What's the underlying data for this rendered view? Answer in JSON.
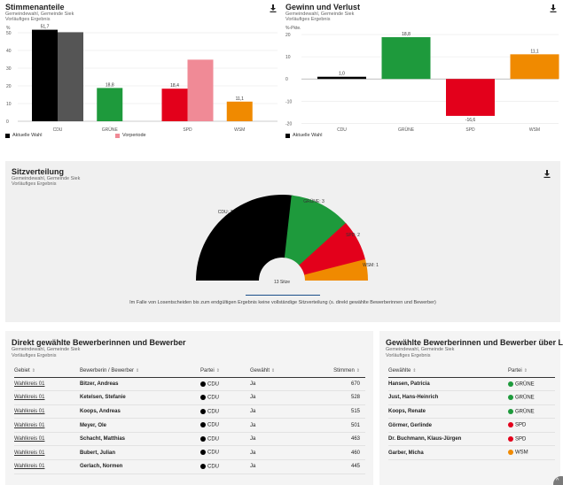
{
  "colors": {
    "CDU": "#000000",
    "CDU_prev": "#555555",
    "GRUENE": "#1e9a3c",
    "GRUENE_prev": "#8fd3a0",
    "SPD": "#e3001b",
    "SPD_prev": "#f08a96",
    "WSM": "#f08a00",
    "WSM_prev": "#f8c37a"
  },
  "stimmen": {
    "title": "Stimmenanteile",
    "sub1": "Gemeindewahl, Gemeinde Siek",
    "sub2": "Vorläufiges Ergebnis",
    "unit": "%",
    "legend_current": "Aktuelle Wahl",
    "legend_previous": "Vorperiode"
  },
  "gewinn": {
    "title": "Gewinn und Verlust",
    "sub1": "Gemeindewahl, Gemeinde Siek",
    "sub2": "Vorläufiges Ergebnis",
    "unit": "%-Pkte.",
    "legend_current": "Aktuelle Wahl"
  },
  "chart_data": [
    {
      "type": "bar",
      "title": "Stimmenanteile",
      "ylabel": "%",
      "categories": [
        "CDU",
        "GRÜNE",
        "SPD",
        "WSM"
      ],
      "series": [
        {
          "name": "Aktuelle Wahl",
          "values": [
            51.7,
            18.8,
            18.4,
            11.1
          ],
          "labels": [
            "51,7",
            "18,8",
            "18,4",
            "11,1"
          ]
        },
        {
          "name": "Vorperiode",
          "values": [
            50.3,
            null,
            34.8,
            null
          ]
        }
      ],
      "ylim": [
        0,
        52
      ],
      "yticks": [
        0,
        10,
        20,
        30,
        40,
        50
      ]
    },
    {
      "type": "bar",
      "title": "Gewinn und Verlust",
      "ylabel": "%-Pkte.",
      "categories": [
        "CDU",
        "GRÜNE",
        "SPD",
        "WSM"
      ],
      "series": [
        {
          "name": "Aktuelle Wahl",
          "values": [
            1.0,
            18.8,
            -16.6,
            11.1
          ],
          "labels": [
            "1,0",
            "18,8",
            "-16,6",
            "11,1"
          ]
        }
      ],
      "ylim": [
        -23,
        20
      ],
      "yticks": [
        20,
        10,
        0,
        -10,
        -20
      ]
    },
    {
      "type": "pie",
      "title": "Sitzverteilung",
      "categories": [
        "CDU",
        "GRÜNE",
        "SPD",
        "WSM"
      ],
      "values": [
        7,
        3,
        2,
        1
      ],
      "labels": [
        "CDU: 7",
        "GRÜNE: 3",
        "SPD: 2",
        "WSM: 1"
      ],
      "total_label": "13 Sitze"
    }
  ],
  "sitz": {
    "title": "Sitzverteilung",
    "sub1": "Gemeindewahl, Gemeinde Siek",
    "sub2": "Vorläufiges Ergebnis",
    "note": "Im Falle von Losentscheiden bis zum endgültigen Ergebnis keine vollständige Sitzverteilung (s. direkt gewählte Bewerberinnen und Bewerber)"
  },
  "direkt": {
    "title": "Direkt gewählte Bewerberinnen und Bewerber",
    "sub1": "Gemeindewahl, Gemeinde Siek",
    "sub2": "Vorläufiges Ergebnis",
    "headers": {
      "gebiet": "Gebiet",
      "bewerber": "Bewerberin / Bewerber",
      "partei": "Partei",
      "gewaehlt": "Gewählt",
      "stimmen": "Stimmen"
    },
    "rows": [
      {
        "gebiet": "Wahlkreis 01",
        "name": "Bitzer, Andreas",
        "partei": "CDU",
        "gewaehlt": "Ja",
        "stimmen": "670"
      },
      {
        "gebiet": "Wahlkreis 01",
        "name": "Ketelsen, Stefanie",
        "partei": "CDU",
        "gewaehlt": "Ja",
        "stimmen": "528"
      },
      {
        "gebiet": "Wahlkreis 01",
        "name": "Koops, Andreas",
        "partei": "CDU",
        "gewaehlt": "Ja",
        "stimmen": "515"
      },
      {
        "gebiet": "Wahlkreis 01",
        "name": "Meyer, Ole",
        "partei": "CDU",
        "gewaehlt": "Ja",
        "stimmen": "501"
      },
      {
        "gebiet": "Wahlkreis 01",
        "name": "Schacht, Matthias",
        "partei": "CDU",
        "gewaehlt": "Ja",
        "stimmen": "463"
      },
      {
        "gebiet": "Wahlkreis 01",
        "name": "Bubert, Julian",
        "partei": "CDU",
        "gewaehlt": "Ja",
        "stimmen": "460"
      },
      {
        "gebiet": "Wahlkreis 01",
        "name": "Gerlach, Normen",
        "partei": "CDU",
        "gewaehlt": "Ja",
        "stimmen": "445"
      }
    ]
  },
  "liste": {
    "title": "Gewählte Bewerberinnen und Bewerber über Liste",
    "sub1": "Gemeindewahl, Gemeinde Siek",
    "sub2": "Vorläufiges Ergebnis",
    "headers": {
      "gewaehlte": "Gewählte",
      "partei": "Partei"
    },
    "rows": [
      {
        "name": "Hansen, Patricia",
        "partei": "GRÜNE"
      },
      {
        "name": "Just, Hans-Heinrich",
        "partei": "GRÜNE"
      },
      {
        "name": "Koops, Renate",
        "partei": "GRÜNE"
      },
      {
        "name": "Görmer, Gerlinde",
        "partei": "SPD"
      },
      {
        "name": "Dr. Buchmann, Klaus-Jürgen",
        "partei": "SPD"
      },
      {
        "name": "Garber, Micha",
        "partei": "WSM"
      }
    ]
  }
}
